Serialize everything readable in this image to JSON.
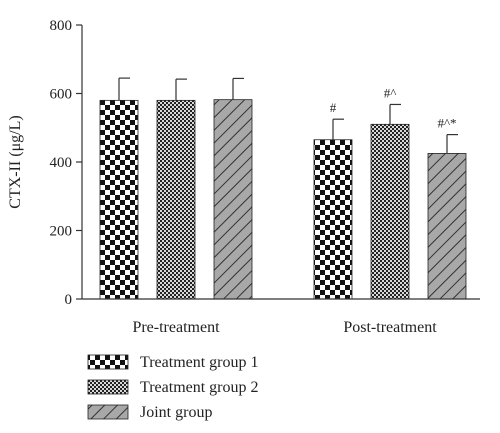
{
  "chart_data": {
    "type": "bar",
    "ylabel": "CTX-II (μg/L)",
    "ylim": [
      0,
      800
    ],
    "yticks": [
      0,
      200,
      400,
      600,
      800
    ],
    "categories": [
      "Pre-treatment",
      "Post-treatment"
    ],
    "series": [
      {
        "name": "Treatment group 1",
        "pattern": "checker-large",
        "values": [
          580,
          465
        ],
        "errors": [
          65,
          60
        ],
        "annotations": [
          "",
          "#"
        ]
      },
      {
        "name": "Treatment group 2",
        "pattern": "checker-small",
        "values": [
          580,
          510
        ],
        "errors": [
          62,
          58
        ],
        "annotations": [
          "",
          "#^"
        ]
      },
      {
        "name": "Joint group",
        "pattern": "diagonal-hatch",
        "values": [
          582,
          425
        ],
        "errors": [
          62,
          55
        ],
        "annotations": [
          "",
          "#^*"
        ]
      }
    ],
    "legend_position": "bottom-left",
    "grid": false,
    "colors": {
      "bar_fill_gray": "#a8a8a8",
      "pattern_dark": "#111111",
      "axis": "#333333"
    }
  }
}
